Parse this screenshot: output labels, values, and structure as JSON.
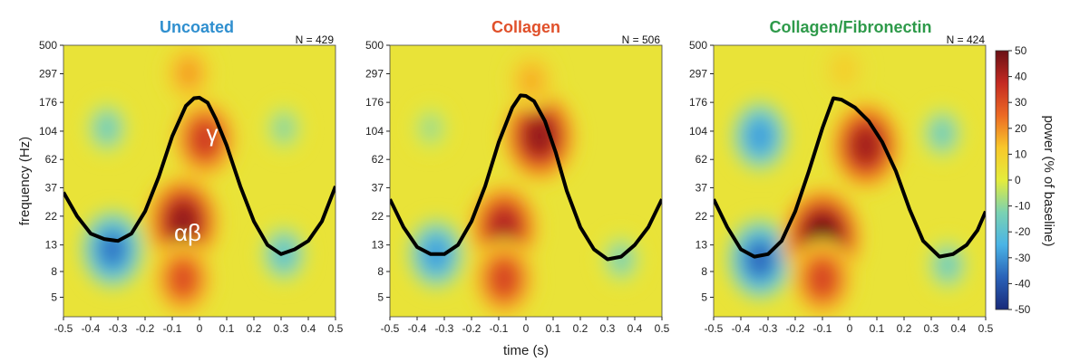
{
  "colors": {
    "title_uncoated": "#2f8fcf",
    "title_collagen": "#e0502a",
    "title_collagen_fn": "#2e9a4a",
    "trace": "#000000",
    "colormap": [
      "#182a7a",
      "#2a62b8",
      "#4ab4e6",
      "#7ad2b2",
      "#e4ec3c",
      "#f8c82a",
      "#ec6a24",
      "#c42a22",
      "#6a1016"
    ]
  },
  "chart_data": [
    {
      "type": "heatmap",
      "title": "Uncoated",
      "n_label": "N = 429",
      "ylabel": "frequency (Hz)",
      "xlabel": "",
      "x_ticks": [
        "-0.5",
        "-0.4",
        "-0.3",
        "-0.2",
        "-0.1",
        "0",
        "0.1",
        "0.2",
        "0.3",
        "0.4",
        "0.5"
      ],
      "y_ticks": [
        "500",
        "297",
        "176",
        "104",
        "62",
        "37",
        "22",
        "13",
        "8",
        "5"
      ],
      "xlim": [
        -0.5,
        0.5
      ],
      "annotations": [
        {
          "text": "γ",
          "x": 0.04,
          "freq": 90
        },
        {
          "text": "αβ",
          "x": -0.06,
          "freq": 15
        }
      ],
      "blobs": [
        {
          "x": -0.32,
          "freq": 12,
          "power": -34
        },
        {
          "x": -0.34,
          "freq": 110,
          "power": -14
        },
        {
          "x": -0.06,
          "freq": 20,
          "power": 44
        },
        {
          "x": -0.06,
          "freq": 7,
          "power": 30
        },
        {
          "x": 0.02,
          "freq": 90,
          "power": 34
        },
        {
          "x": -0.04,
          "freq": 300,
          "power": 18
        },
        {
          "x": 0.31,
          "freq": 11,
          "power": -18
        },
        {
          "x": 0.31,
          "freq": 110,
          "power": -10
        }
      ],
      "trace": [
        {
          "x": -0.5,
          "freq": 34
        },
        {
          "x": -0.45,
          "freq": 22
        },
        {
          "x": -0.4,
          "freq": 16
        },
        {
          "x": -0.35,
          "freq": 14.5
        },
        {
          "x": -0.3,
          "freq": 14
        },
        {
          "x": -0.25,
          "freq": 16
        },
        {
          "x": -0.2,
          "freq": 24
        },
        {
          "x": -0.15,
          "freq": 45
        },
        {
          "x": -0.1,
          "freq": 95
        },
        {
          "x": -0.05,
          "freq": 165
        },
        {
          "x": -0.02,
          "freq": 190
        },
        {
          "x": 0.0,
          "freq": 192
        },
        {
          "x": 0.03,
          "freq": 175
        },
        {
          "x": 0.06,
          "freq": 130
        },
        {
          "x": 0.1,
          "freq": 80
        },
        {
          "x": 0.15,
          "freq": 38
        },
        {
          "x": 0.2,
          "freq": 20
        },
        {
          "x": 0.25,
          "freq": 13
        },
        {
          "x": 0.3,
          "freq": 11
        },
        {
          "x": 0.35,
          "freq": 12
        },
        {
          "x": 0.4,
          "freq": 14
        },
        {
          "x": 0.45,
          "freq": 20
        },
        {
          "x": 0.5,
          "freq": 38
        }
      ]
    },
    {
      "type": "heatmap",
      "title": "Collagen",
      "n_label": "N = 506",
      "ylabel": "",
      "xlabel": "time (s)",
      "x_ticks": [
        "-0.5",
        "-0.4",
        "-0.3",
        "-0.2",
        "-0.1",
        "0",
        "0.1",
        "0.2",
        "0.3",
        "0.4",
        "0.5"
      ],
      "y_ticks": [
        "500",
        "297",
        "176",
        "104",
        "62",
        "37",
        "22",
        "13",
        "8",
        "5"
      ],
      "xlim": [
        -0.5,
        0.5
      ],
      "annotations": [],
      "blobs": [
        {
          "x": -0.33,
          "freq": 11,
          "power": -28
        },
        {
          "x": -0.08,
          "freq": 18,
          "power": 40
        },
        {
          "x": -0.08,
          "freq": 7,
          "power": 32
        },
        {
          "x": 0.05,
          "freq": 95,
          "power": 44
        },
        {
          "x": 0.02,
          "freq": 260,
          "power": 16
        },
        {
          "x": 0.35,
          "freq": 10,
          "power": -12
        },
        {
          "x": -0.35,
          "freq": 110,
          "power": -8
        }
      ],
      "trace": [
        {
          "x": -0.5,
          "freq": 30
        },
        {
          "x": -0.45,
          "freq": 18
        },
        {
          "x": -0.4,
          "freq": 12.5
        },
        {
          "x": -0.35,
          "freq": 11
        },
        {
          "x": -0.3,
          "freq": 11
        },
        {
          "x": -0.25,
          "freq": 13
        },
        {
          "x": -0.2,
          "freq": 20
        },
        {
          "x": -0.15,
          "freq": 38
        },
        {
          "x": -0.1,
          "freq": 85
        },
        {
          "x": -0.05,
          "freq": 160
        },
        {
          "x": -0.02,
          "freq": 200
        },
        {
          "x": 0.0,
          "freq": 198
        },
        {
          "x": 0.03,
          "freq": 180
        },
        {
          "x": 0.07,
          "freq": 125
        },
        {
          "x": 0.11,
          "freq": 70
        },
        {
          "x": 0.15,
          "freq": 35
        },
        {
          "x": 0.2,
          "freq": 18
        },
        {
          "x": 0.25,
          "freq": 12
        },
        {
          "x": 0.3,
          "freq": 10
        },
        {
          "x": 0.35,
          "freq": 10.5
        },
        {
          "x": 0.4,
          "freq": 13
        },
        {
          "x": 0.45,
          "freq": 18
        },
        {
          "x": 0.5,
          "freq": 30
        }
      ]
    },
    {
      "type": "heatmap",
      "title": "Collagen/Fibronectin",
      "n_label": "N = 424",
      "ylabel": "",
      "xlabel": "",
      "x_ticks": [
        "-0.5",
        "-0.4",
        "-0.3",
        "-0.2",
        "-0.1",
        "0",
        "0.1",
        "0.2",
        "0.3",
        "0.4",
        "0.5"
      ],
      "y_ticks": [
        "500",
        "297",
        "176",
        "104",
        "62",
        "37",
        "22",
        "13",
        "8",
        "5"
      ],
      "xlim": [
        -0.5,
        0.5
      ],
      "annotations": [],
      "blobs": [
        {
          "x": -0.33,
          "freq": 10,
          "power": -36
        },
        {
          "x": -0.33,
          "freq": 95,
          "power": -28
        },
        {
          "x": -0.1,
          "freq": 15,
          "power": 50
        },
        {
          "x": -0.1,
          "freq": 7,
          "power": 32
        },
        {
          "x": 0.06,
          "freq": 80,
          "power": 42
        },
        {
          "x": 0.36,
          "freq": 9,
          "power": -14
        },
        {
          "x": 0.34,
          "freq": 100,
          "power": -14
        },
        {
          "x": -0.02,
          "freq": 320,
          "power": 10
        }
      ],
      "trace": [
        {
          "x": -0.5,
          "freq": 30
        },
        {
          "x": -0.45,
          "freq": 18
        },
        {
          "x": -0.4,
          "freq": 12
        },
        {
          "x": -0.35,
          "freq": 10.5
        },
        {
          "x": -0.3,
          "freq": 11
        },
        {
          "x": -0.25,
          "freq": 14
        },
        {
          "x": -0.2,
          "freq": 24
        },
        {
          "x": -0.15,
          "freq": 50
        },
        {
          "x": -0.1,
          "freq": 110
        },
        {
          "x": -0.06,
          "freq": 190
        },
        {
          "x": -0.03,
          "freq": 185
        },
        {
          "x": 0.02,
          "freq": 160
        },
        {
          "x": 0.07,
          "freq": 125
        },
        {
          "x": 0.12,
          "freq": 85
        },
        {
          "x": 0.17,
          "freq": 50
        },
        {
          "x": 0.22,
          "freq": 25
        },
        {
          "x": 0.27,
          "freq": 14
        },
        {
          "x": 0.33,
          "freq": 10.5
        },
        {
          "x": 0.38,
          "freq": 11
        },
        {
          "x": 0.43,
          "freq": 13
        },
        {
          "x": 0.47,
          "freq": 17
        },
        {
          "x": 0.5,
          "freq": 24
        }
      ]
    }
  ],
  "colorbar": {
    "label": "power (% of baseline)",
    "ticks": [
      "50",
      "40",
      "30",
      "20",
      "10",
      "0",
      "-10",
      "-20",
      "-30",
      "-40",
      "-50"
    ],
    "range": [
      -50,
      50
    ]
  }
}
